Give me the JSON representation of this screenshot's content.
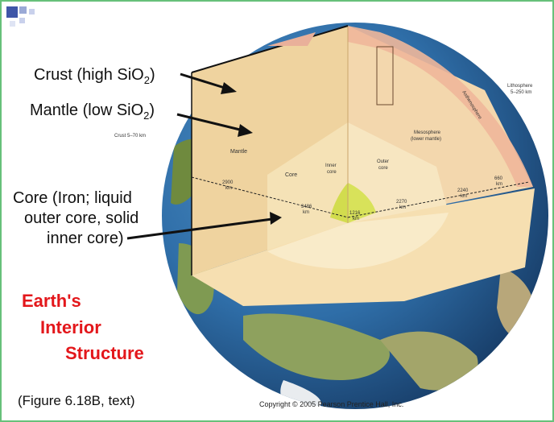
{
  "labels": {
    "crust": "Crust (high SiO",
    "crust_sub": "2",
    "crust_end": ")",
    "mantle": "Mantle (low SiO",
    "mantle_sub": "2",
    "mantle_end": ")",
    "core_1": "Core (Iron; liquid",
    "core_2": "outer core, solid",
    "core_3": "inner core)"
  },
  "title": [
    "Earth's",
    "Interior",
    "Structure"
  ],
  "figure_ref": "(Figure 6.18B, text)",
  "copyright": "Copyright © 2005 Pearson Prentice Hall, Inc.",
  "diagram": {
    "lithosphere": "Lithosphere",
    "lithosphere_range": "5–250 km",
    "crust_thickness": "Crust 5–70 km",
    "mantle": "Mantle",
    "core": "Core",
    "inner_core_1": "Inner",
    "inner_core_2": "core",
    "outer_core_1": "Outer",
    "outer_core_2": "core",
    "mesosphere_1": "Mesosphere",
    "mesosphere_2": "(lower mantle)",
    "asthenosphere": "Asthenosphere",
    "d2900": "2900",
    "d2900_unit": "km",
    "d3486": "3486",
    "d3486_unit": "km",
    "d1216": "1216",
    "d1216_unit": "km",
    "d2270": "2270",
    "d2270_unit": "km",
    "d2240": "2240",
    "d2240_unit": "km",
    "d660": "660",
    "d660_unit": "km"
  },
  "colors": {
    "title_red": "#e3171b",
    "frame_green": "#67c07a",
    "mantle": "#f2d9a8",
    "core": "#f7e3b8",
    "inner_core": "#d8e25a",
    "asthenosphere": "#f0b79a"
  }
}
